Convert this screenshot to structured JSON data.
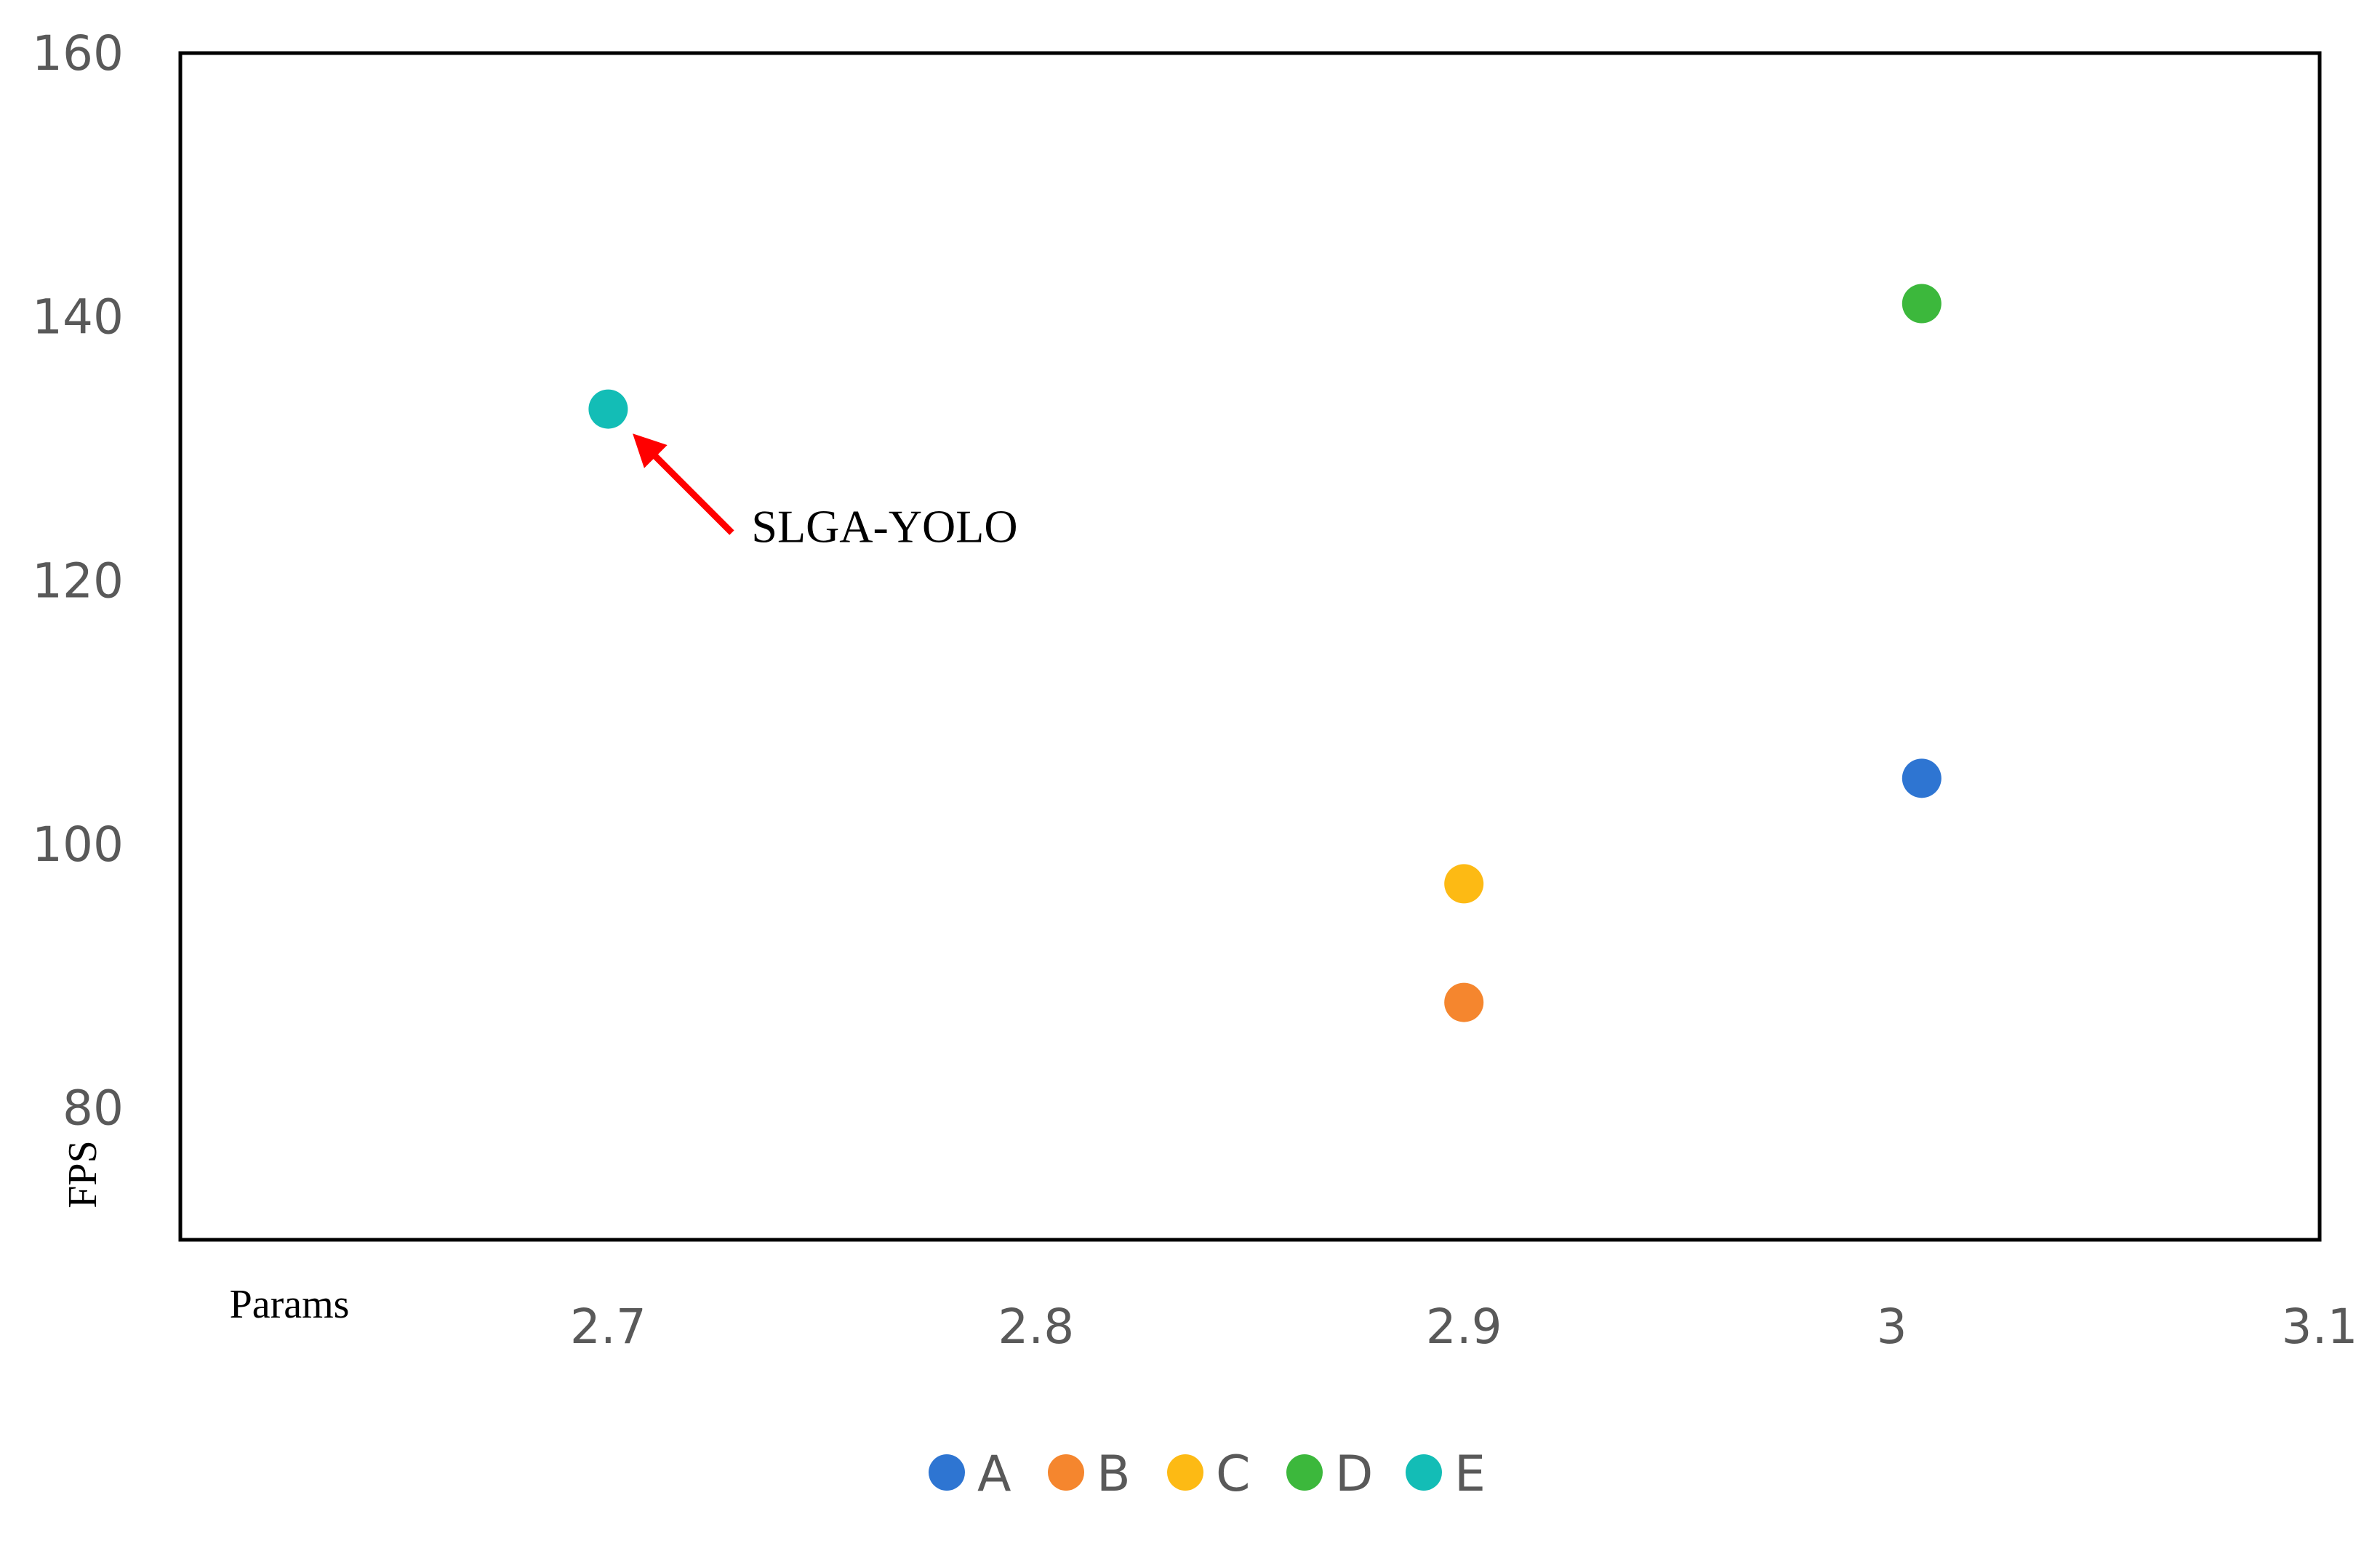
{
  "chart_data": {
    "type": "scatter",
    "xlabel": "Params",
    "ylabel": "FPS",
    "xlim": [
      2.6,
      3.1
    ],
    "ylim": [
      70,
      160
    ],
    "x_ticks": [
      2.7,
      2.8,
      2.9,
      3.0,
      3.1
    ],
    "x_tick_labels": [
      "2.7",
      "2.8",
      "2.9",
      "3",
      "3.1"
    ],
    "y_ticks": [
      80,
      100,
      120,
      140,
      160
    ],
    "y_tick_labels": [
      "80",
      "100",
      "120",
      "140",
      "160"
    ],
    "grid": false,
    "legend_position": "bottom",
    "series": [
      {
        "name": "A",
        "color": "#2E75D2",
        "points": [
          {
            "x": 3.007,
            "y": 105
          }
        ]
      },
      {
        "name": "B",
        "color": "#F5862E",
        "points": [
          {
            "x": 2.9,
            "y": 88
          }
        ]
      },
      {
        "name": "C",
        "color": "#FDBA14",
        "points": [
          {
            "x": 2.9,
            "y": 97
          }
        ]
      },
      {
        "name": "D",
        "color": "#3CB83C",
        "points": [
          {
            "x": 3.007,
            "y": 141
          }
        ]
      },
      {
        "name": "E",
        "color": "#13BDB6",
        "points": [
          {
            "x": 2.7,
            "y": 133
          }
        ]
      }
    ],
    "annotations": [
      {
        "text": "SLGA-YOLO",
        "target_series": "E",
        "arrow_color": "#FF0000"
      }
    ]
  }
}
